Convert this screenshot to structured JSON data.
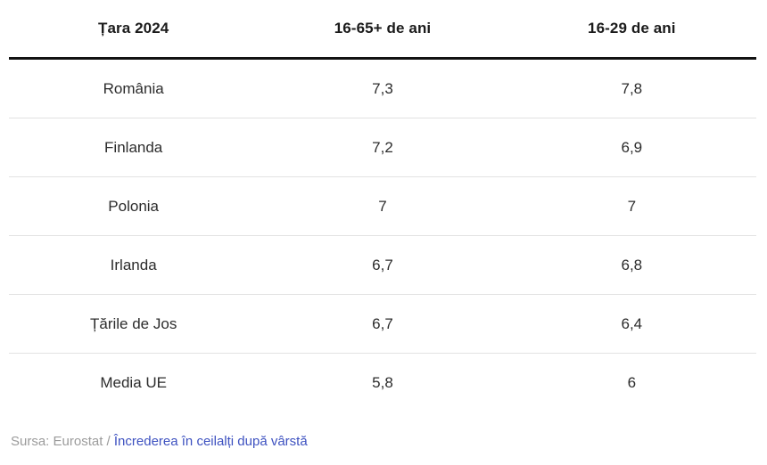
{
  "table": {
    "columns": [
      "Țara 2024",
      "16-65+ de ani",
      "16-29 de ani"
    ],
    "rows": [
      {
        "country": "România",
        "all_ages": "7,3",
        "young": "7,8"
      },
      {
        "country": "Finlanda",
        "all_ages": "7,2",
        "young": "6,9"
      },
      {
        "country": "Polonia",
        "all_ages": "7",
        "young": "7"
      },
      {
        "country": "Irlanda",
        "all_ages": "6,7",
        "young": "6,8"
      },
      {
        "country": "Țările de Jos",
        "all_ages": "6,7",
        "young": "6,4"
      },
      {
        "country": "Media UE",
        "all_ages": "5,8",
        "young": "6"
      }
    ]
  },
  "footer": {
    "source_prefix": "Sursa: Eurostat / ",
    "link_label": "Încrederea în ceilalți după vârstă"
  },
  "colors": {
    "header_rule": "#121212",
    "row_rule": "#e2e2e2",
    "text": "#2c2c2c",
    "muted": "#9b9b9b",
    "link": "#3d51c0"
  },
  "chart_data": {
    "type": "table",
    "title": "",
    "columns": [
      "Țara 2024",
      "16-65+ de ani",
      "16-29 de ani"
    ],
    "rows": [
      [
        "România",
        7.3,
        7.8
      ],
      [
        "Finlanda",
        7.2,
        6.9
      ],
      [
        "Polonia",
        7,
        7
      ],
      [
        "Irlanda",
        6.7,
        6.8
      ],
      [
        "Țările de Jos",
        6.7,
        6.4
      ],
      [
        "Media UE",
        5.8,
        6
      ]
    ],
    "source": "Sursa: Eurostat / Încrederea în ceilalți după vârstă"
  }
}
